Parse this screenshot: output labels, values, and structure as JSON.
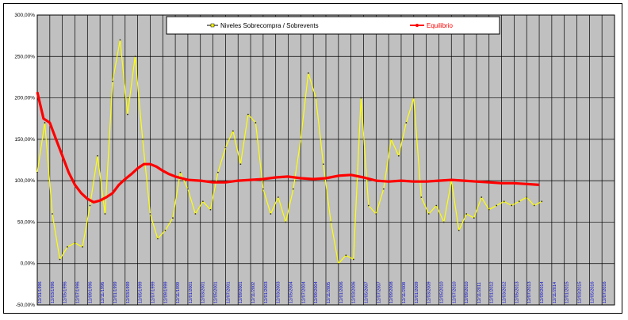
{
  "chart_data": {
    "type": "line",
    "title": "",
    "xlabel": "",
    "ylabel": "",
    "ylim": [
      -50,
      300
    ],
    "yticks": [
      "-50,00%",
      "0,00%",
      "50,00%",
      "100,00%",
      "150,00%",
      "200,00%",
      "250,00%",
      "300,00%"
    ],
    "ytick_values": [
      -50,
      0,
      50,
      100,
      150,
      200,
      250,
      300
    ],
    "grid": true,
    "legend_position": "top",
    "x_count": 46,
    "x_tick_labels": [
      "12/31/1996",
      "12/03/1996",
      "12/05/1996",
      "12/07/1996",
      "12/09/1996",
      "12/11/1996",
      "12/01/1999",
      "12/03/1999",
      "12/05/1999",
      "12/07/1999",
      "12/09/1999",
      "12/11/1999",
      "12/01/2001",
      "12/03/2001",
      "12/05/2001",
      "12/07/2001",
      "12/09/2001",
      "12/11/2002",
      "12/01/2003",
      "12/03/2003",
      "12/05/2004",
      "12/07/2004",
      "12/09/2004",
      "12/11/2005",
      "12/01/2006",
      "12/03/2006",
      "12/05/2007",
      "12/07/2007",
      "12/09/2008",
      "12/11/2008",
      "12/01/2009",
      "12/03/2009",
      "12/05/2010",
      "12/07/2010",
      "12/09/2010",
      "12/11/2011",
      "12/01/2012",
      "12/03/2012",
      "12/05/2013",
      "12/07/2013",
      "12/09/2014",
      "12/11/2014",
      "12/01/2015",
      "12/03/2015",
      "12/05/2016",
      "12/07/2016"
    ],
    "series": [
      {
        "name": "Niveles  Sobrecompra / Sobrevents",
        "color": "#ffff00",
        "x": [
          0,
          0.6,
          1.2,
          1.8,
          2.4,
          3.0,
          3.6,
          4.2,
          4.8,
          5.4,
          6.0,
          6.6,
          7.2,
          7.8,
          8.4,
          9.0,
          9.6,
          10.2,
          10.8,
          11.4,
          12.0,
          12.6,
          13.2,
          13.8,
          14.4,
          15.0,
          15.6,
          16.2,
          16.8,
          17.4,
          18.0,
          18.6,
          19.2,
          19.8,
          20.4,
          21.0,
          21.6,
          22.2,
          22.8,
          23.4,
          24.0,
          24.6,
          25.2,
          25.8,
          26.4,
          27.0,
          27.6,
          28.2,
          28.8,
          29.4,
          30.0,
          30.6,
          31.2,
          31.8,
          32.4,
          33.0,
          33.6,
          34.2,
          34.8,
          35.4,
          36.0,
          36.6,
          37.2,
          37.8,
          38.4,
          39.0,
          39.6,
          40.2
        ],
        "values": [
          110,
          170,
          60,
          5,
          20,
          25,
          20,
          70,
          130,
          60,
          220,
          270,
          180,
          250,
          150,
          60,
          30,
          40,
          55,
          110,
          90,
          60,
          75,
          65,
          110,
          140,
          160,
          120,
          180,
          170,
          90,
          60,
          80,
          50,
          90,
          150,
          230,
          200,
          120,
          50,
          0,
          10,
          5,
          200,
          70,
          60,
          90,
          150,
          130,
          170,
          200,
          80,
          60,
          70,
          50,
          100,
          40,
          60,
          55,
          80,
          65,
          70,
          75,
          70,
          75,
          80,
          70,
          75
        ]
      },
      {
        "name": "Equilibrio",
        "color": "#ff0000",
        "x": [
          0,
          0.5,
          1,
          1.5,
          2,
          2.5,
          3,
          3.5,
          4,
          4.5,
          5,
          5.5,
          6,
          6.5,
          7,
          7.5,
          8,
          8.5,
          9,
          9.5,
          10,
          10.5,
          11,
          11.5,
          12,
          13,
          14,
          15,
          16,
          17,
          18,
          19,
          20,
          21,
          22,
          23,
          24,
          25,
          26,
          27,
          28,
          29,
          30,
          31,
          32,
          33,
          34,
          35,
          36,
          37,
          38,
          39,
          40
        ],
        "values": [
          207,
          175,
          170,
          150,
          130,
          110,
          95,
          85,
          78,
          74,
          76,
          80,
          85,
          95,
          102,
          108,
          115,
          120,
          120,
          117,
          112,
          108,
          105,
          103,
          101,
          100,
          98,
          98,
          100,
          101,
          102,
          104,
          105,
          103,
          102,
          103,
          106,
          107,
          104,
          100,
          99,
          100,
          99,
          99,
          100,
          101,
          100,
          99,
          98,
          97,
          97,
          96,
          95
        ]
      }
    ]
  }
}
